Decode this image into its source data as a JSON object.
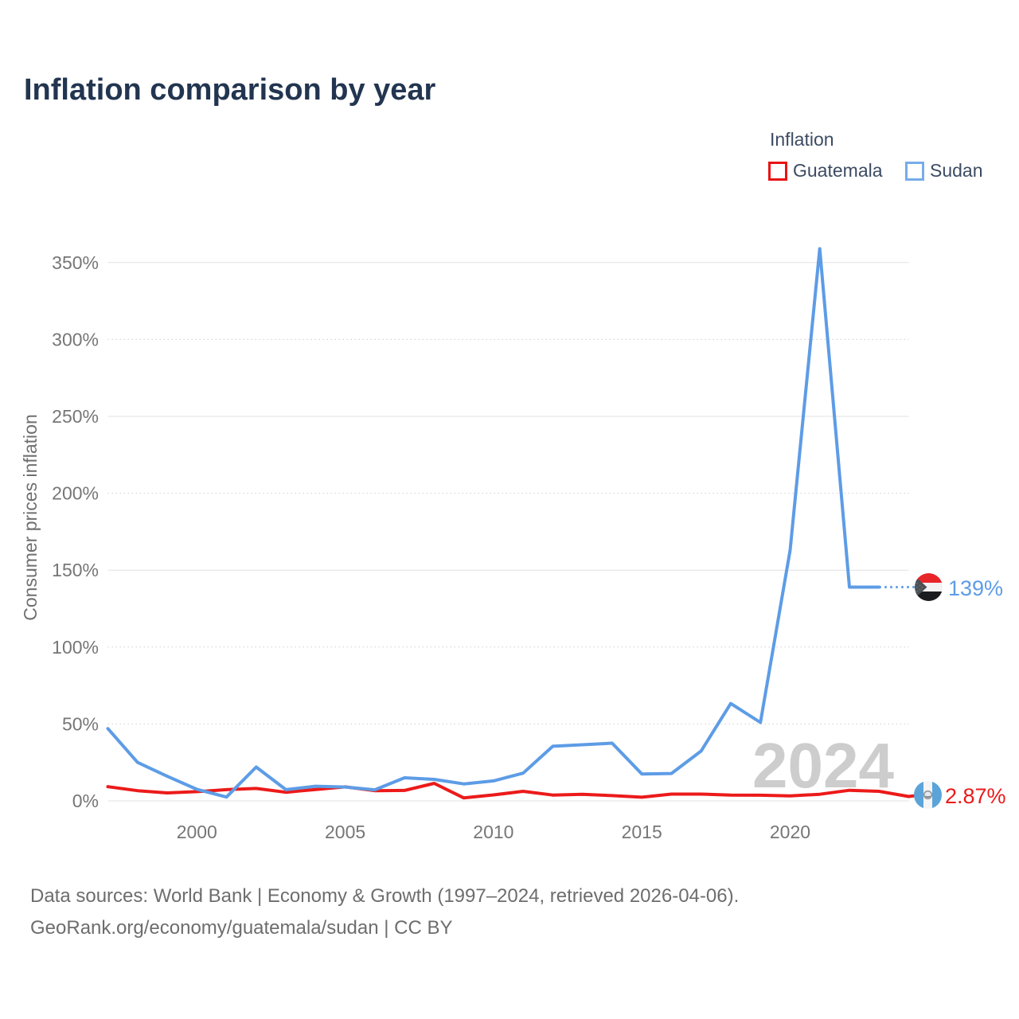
{
  "title": "Inflation comparison by year",
  "legend": {
    "title": "Inflation",
    "items": [
      {
        "label": "Guatemala",
        "color": "#e81414"
      },
      {
        "label": "Sudan",
        "color": "#77ace9"
      }
    ]
  },
  "chart_data": {
    "type": "line",
    "title": "Inflation comparison by year",
    "x": [
      1997,
      1998,
      1999,
      2000,
      2001,
      2002,
      2003,
      2004,
      2005,
      2006,
      2007,
      2008,
      2009,
      2010,
      2011,
      2012,
      2013,
      2014,
      2015,
      2016,
      2017,
      2018,
      2019,
      2020,
      2021,
      2022,
      2023,
      2024
    ],
    "series": [
      {
        "name": "Guatemala",
        "color": "#ec1a1a",
        "end_label": "2.87%",
        "values": [
          9.2,
          6.6,
          5.2,
          6.0,
          7.3,
          8.1,
          5.6,
          7.4,
          9.1,
          6.6,
          6.8,
          11.4,
          1.9,
          3.9,
          6.2,
          3.8,
          4.3,
          3.4,
          2.4,
          4.4,
          4.4,
          3.8,
          3.7,
          3.2,
          4.3,
          6.9,
          6.2,
          2.87
        ]
      },
      {
        "name": "Sudan",
        "color": "#5d9ce6",
        "end_label": "139%",
        "last_segment_dotted": true,
        "values": [
          47,
          25,
          16,
          7.5,
          2.5,
          22,
          7.3,
          9.5,
          9,
          7.2,
          15,
          14,
          11,
          13,
          18,
          35.5,
          36.5,
          37.5,
          17.5,
          17.8,
          32.4,
          63.3,
          51,
          163,
          359,
          139,
          139,
          139
        ]
      }
    ],
    "ylabel": "Consumer prices inflation",
    "yticks": [
      0,
      50,
      100,
      150,
      200,
      250,
      300,
      350
    ],
    "ytick_labels": [
      "0%",
      "50%",
      "100%",
      "150%",
      "200%",
      "250%",
      "300%",
      "350%"
    ],
    "xticks": [
      2000,
      2005,
      2010,
      2015,
      2020
    ],
    "xtick_labels": [
      "2000",
      "2005",
      "2010",
      "2015",
      "2020"
    ],
    "ylim": [
      0,
      370
    ],
    "xlim": [
      1997,
      2024
    ],
    "grid": true,
    "legend_position": "top-right",
    "watermark": "2024"
  },
  "footer": {
    "line1": "Data sources: World Bank | Economy & Growth (1997–2024, retrieved 2026-04-06).",
    "line2": "GeoRank.org/economy/guatemala/sudan | CC BY"
  }
}
